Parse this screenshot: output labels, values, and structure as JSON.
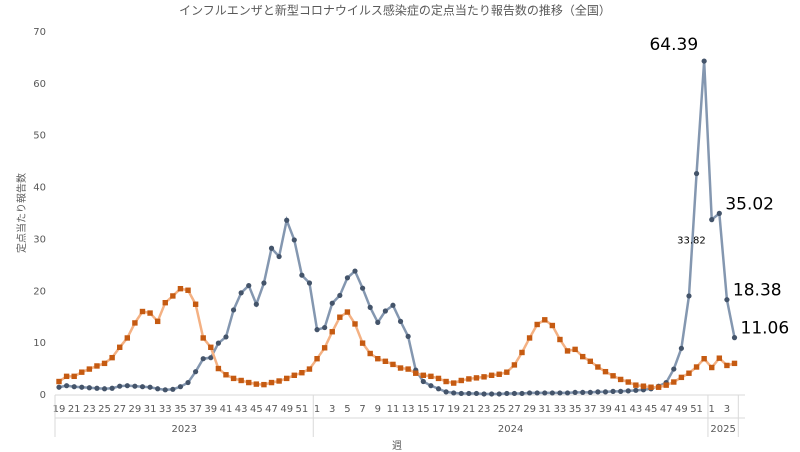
{
  "chart_data": {
    "type": "line",
    "title": "インフルエンザと新型コロナウイルス感染症の定点当たり報告数の推移（全国）",
    "y_label": "定点当たり報告数",
    "x_label": "週",
    "categories": [
      "19",
      null,
      "21",
      null,
      "23",
      null,
      "25",
      null,
      "27",
      null,
      "29",
      null,
      "31",
      null,
      "33",
      null,
      "35",
      null,
      "37",
      null,
      "39",
      null,
      "41",
      null,
      "43",
      null,
      "45",
      null,
      "47",
      null,
      "49",
      null,
      "51",
      null,
      "1",
      null,
      "3",
      null,
      "5",
      null,
      "7",
      null,
      "9",
      null,
      "11",
      null,
      "13",
      null,
      "15",
      null,
      "17",
      null,
      "19",
      null,
      "21",
      null,
      "23",
      null,
      "25",
      null,
      "27",
      null,
      "29",
      null,
      "31",
      null,
      "33",
      null,
      "35",
      null,
      "37",
      null,
      "39",
      null,
      "41",
      null,
      "43",
      null,
      "45",
      null,
      "47",
      null,
      "49",
      null,
      "51",
      null,
      "1",
      null,
      "3",
      null
    ],
    "groups": [
      {
        "label": "2023",
        "count": 34
      },
      {
        "label": "2024",
        "count": 52
      },
      {
        "label": "2025",
        "count": 4
      }
    ],
    "series": [
      {
        "color": "#8497b0",
        "marker_color": "#44546a",
        "marker": "circle",
        "values": [
          1.5,
          1.8,
          1.6,
          1.5,
          1.4,
          1.3,
          1.2,
          1.3,
          1.7,
          1.8,
          1.7,
          1.6,
          1.5,
          1.2,
          1.0,
          1.1,
          1.6,
          2.4,
          4.5,
          7.0,
          7.2,
          10.0,
          11.2,
          16.4,
          19.7,
          21.1,
          17.5,
          21.6,
          28.3,
          26.7,
          33.7,
          29.9,
          23.1,
          21.6,
          12.6,
          13.0,
          17.7,
          19.2,
          22.6,
          23.9,
          20.6,
          16.9,
          14.0,
          16.2,
          17.3,
          14.2,
          11.3,
          4.8,
          2.6,
          1.8,
          1.2,
          0.6,
          0.4,
          0.3,
          0.3,
          0.3,
          0.2,
          0.2,
          0.2,
          0.3,
          0.3,
          0.3,
          0.4,
          0.4,
          0.4,
          0.4,
          0.4,
          0.4,
          0.5,
          0.5,
          0.5,
          0.6,
          0.6,
          0.7,
          0.7,
          0.8,
          0.9,
          1.0,
          1.2,
          1.7,
          2.4,
          5.0,
          9.0,
          19.1,
          42.7,
          64.39,
          33.82,
          35.02,
          18.38,
          11.06
        ],
        "value_labels": [
          null,
          null,
          null,
          null,
          null,
          null,
          null,
          null,
          null,
          null,
          null,
          null,
          null,
          null,
          null,
          null,
          null,
          null,
          null,
          null,
          null,
          null,
          null,
          null,
          null,
          null,
          null,
          null,
          null,
          null,
          null,
          null,
          null,
          null,
          null,
          null,
          null,
          null,
          null,
          null,
          null,
          null,
          null,
          null,
          null,
          null,
          null,
          null,
          null,
          null,
          null,
          null,
          null,
          null,
          null,
          null,
          null,
          null,
          null,
          null,
          null,
          null,
          null,
          null,
          null,
          null,
          null,
          null,
          null,
          null,
          null,
          null,
          null,
          null,
          null,
          null,
          null,
          null,
          null,
          null,
          null,
          null,
          null,
          null,
          null,
          "64.39",
          "33.82",
          "35.02",
          "18.38",
          "11.06"
        ]
      },
      {
        "color": "#f4b183",
        "marker_color": "#c55a11",
        "marker": "square",
        "values": [
          2.6,
          3.6,
          3.6,
          4.4,
          5.0,
          5.6,
          6.1,
          7.2,
          9.2,
          11.0,
          13.9,
          16.1,
          15.8,
          14.2,
          17.8,
          19.1,
          20.5,
          20.2,
          17.5,
          11.0,
          9.2,
          5.1,
          3.9,
          3.2,
          2.8,
          2.4,
          2.1,
          2.0,
          2.4,
          2.7,
          3.2,
          3.8,
          4.3,
          5.0,
          7.0,
          9.1,
          12.2,
          15.0,
          16.0,
          13.7,
          10.0,
          8.0,
          7.0,
          6.5,
          5.9,
          5.2,
          5.0,
          4.2,
          3.8,
          3.6,
          3.2,
          2.6,
          2.3,
          2.8,
          3.1,
          3.3,
          3.5,
          3.8,
          4.0,
          4.4,
          5.8,
          8.2,
          11.0,
          13.6,
          14.5,
          13.4,
          10.7,
          8.5,
          8.8,
          7.4,
          6.5,
          5.4,
          4.5,
          3.7,
          3.0,
          2.5,
          1.9,
          1.7,
          1.5,
          1.5,
          1.9,
          2.5,
          3.4,
          4.2,
          5.4,
          7.0,
          5.3,
          7.1,
          5.7,
          6.1
        ]
      }
    ],
    "ylim": [
      0,
      70
    ],
    "yticks": [
      0,
      10,
      20,
      30,
      40,
      50,
      60,
      70
    ],
    "grid": false
  }
}
